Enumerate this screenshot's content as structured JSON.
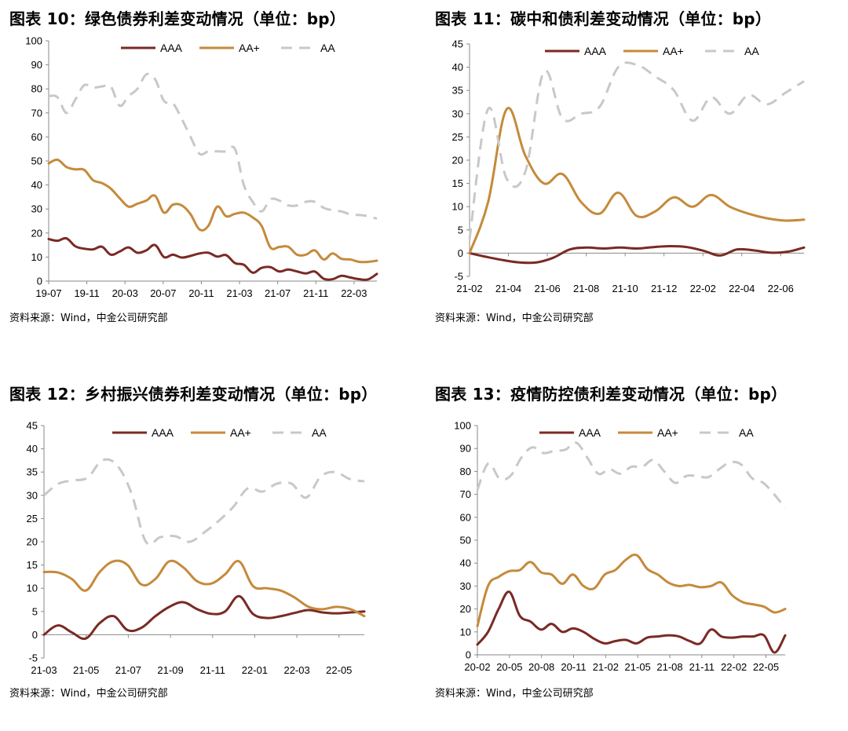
{
  "charts": [
    {
      "title": "图表 10：绿色债券利差变动情况（单位：bp）",
      "source": "资料来源：Wind，中金公司研究部",
      "chart_data": {
        "type": "line",
        "ylim": [
          0,
          100
        ],
        "yticks": [
          0,
          10,
          20,
          30,
          40,
          50,
          60,
          70,
          80,
          90,
          100
        ],
        "xtick_labels": [
          "19-07",
          "19-11",
          "20-03",
          "20-07",
          "20-11",
          "21-03",
          "21-07",
          "21-11",
          "22-03"
        ],
        "grid": false,
        "legend_placement": "top",
        "series": [
          {
            "name": "AAA",
            "color": "#7a2a25",
            "dash": "solid",
            "values": [
              17.5,
              16.8,
              17.8,
              14.5,
              13.5,
              13.2,
              14.3,
              11.0,
              12.3,
              14.0,
              11.8,
              12.8,
              15.0,
              10.0,
              11.0,
              9.8,
              10.5,
              11.5,
              11.8,
              10.2,
              10.8,
              7.5,
              6.8,
              3.5,
              5.5,
              5.8,
              4.0,
              4.8,
              4.0,
              3.2,
              4.0,
              1.0,
              0.8,
              2.2,
              1.5,
              0.8,
              0.7,
              3.0
            ]
          },
          {
            "name": "AA+",
            "color": "#c58a3b",
            "dash": "solid",
            "values": [
              49.0,
              50.5,
              47.5,
              46.5,
              46.3,
              42.0,
              40.8,
              38.5,
              34.5,
              31.0,
              32.2,
              33.5,
              35.5,
              28.5,
              31.8,
              31.5,
              27.8,
              21.5,
              23.0,
              31.0,
              27.0,
              28.0,
              28.5,
              26.5,
              23.0,
              14.0,
              14.2,
              14.3,
              11.0,
              11.0,
              12.8,
              9.0,
              11.5,
              9.3,
              9.0,
              8.0,
              8.0,
              8.5
            ]
          },
          {
            "name": "AA",
            "color": "#c8c8c8",
            "dash": "dashed",
            "values": [
              77.0,
              76.5,
              70.0,
              75.5,
              81.5,
              80.5,
              81.0,
              81.0,
              73.0,
              77.0,
              80.0,
              86.0,
              84.0,
              75.0,
              74.0,
              67.5,
              60.0,
              53.0,
              54.0,
              54.0,
              54.0,
              55.0,
              40.0,
              33.0,
              29.0,
              34.0,
              33.5,
              31.5,
              31.5,
              33.0,
              33.0,
              30.5,
              29.5,
              29.0,
              27.8,
              27.5,
              27.0,
              26.0
            ]
          }
        ]
      }
    },
    {
      "title": "图表 11：碳中和债利差变动情况（单位：bp）",
      "source": "资料来源：Wind，中金公司研究部",
      "chart_data": {
        "type": "line",
        "ylim": [
          -5,
          45
        ],
        "yticks": [
          -5,
          0,
          5,
          10,
          15,
          20,
          25,
          30,
          35,
          40,
          45
        ],
        "xtick_labels": [
          "21-02",
          "21-04",
          "21-06",
          "21-08",
          "21-10",
          "21-12",
          "22-02",
          "22-04",
          "22-06"
        ],
        "grid": false,
        "legend_placement": "top",
        "series": [
          {
            "name": "AAA",
            "color": "#7a2a25",
            "dash": "solid",
            "values": [
              0.0,
              -0.8,
              -1.5,
              -2.0,
              -2.0,
              -1.0,
              0.8,
              1.2,
              1.0,
              1.2,
              1.0,
              1.3,
              1.5,
              1.3,
              0.5,
              -0.5,
              0.8,
              0.6,
              0.1,
              0.3,
              1.2
            ]
          },
          {
            "name": "AA+",
            "color": "#c58a3b",
            "dash": "solid",
            "values": [
              0.0,
              11.0,
              31.0,
              21.0,
              15.0,
              17.0,
              11.0,
              8.5,
              13.0,
              8.0,
              9.0,
              12.0,
              10.0,
              12.5,
              10.0,
              8.5,
              7.5,
              7.0,
              7.2
            ]
          },
          {
            "name": "AA",
            "color": "#c8c8c8",
            "dash": "dashed",
            "values": [
              3.0,
              31.0,
              16.0,
              17.5,
              39.0,
              29.0,
              30.0,
              31.5,
              40.0,
              40.5,
              38.0,
              35.0,
              28.5,
              33.5,
              30.0,
              34.0,
              32.0,
              34.5,
              37.0
            ]
          }
        ]
      }
    },
    {
      "title": "图表 12：乡村振兴债券利差变动情况（单位：bp）",
      "source": "资料来源：Wind，中金公司研究部",
      "chart_data": {
        "type": "line",
        "ylim": [
          -5,
          45
        ],
        "yticks": [
          -5,
          0,
          5,
          10,
          15,
          20,
          25,
          30,
          35,
          40,
          45
        ],
        "xtick_labels": [
          "21-03",
          "21-05",
          "21-07",
          "21-09",
          "21-11",
          "22-01",
          "22-03",
          "22-05"
        ],
        "grid": false,
        "legend_placement": "top",
        "series": [
          {
            "name": "AAA",
            "color": "#7a2a25",
            "dash": "solid",
            "values": [
              0.0,
              2.0,
              0.5,
              -0.8,
              2.5,
              4.0,
              1.0,
              1.5,
              4.0,
              6.0,
              7.0,
              5.5,
              4.5,
              5.0,
              8.3,
              4.5,
              3.6,
              4.0,
              4.7,
              5.3,
              4.8,
              4.6,
              4.8,
              5.0
            ]
          },
          {
            "name": "AA+",
            "color": "#c58a3b",
            "dash": "solid",
            "values": [
              13.5,
              13.4,
              12.0,
              9.5,
              13.5,
              15.8,
              15.0,
              10.8,
              12.0,
              15.8,
              14.5,
              11.5,
              11.0,
              13.0,
              15.8,
              10.5,
              10.0,
              9.5,
              8.0,
              6.0,
              5.5,
              6.0,
              5.5,
              4.0
            ]
          },
          {
            "name": "AA",
            "color": "#c8c8c8",
            "dash": "dashed",
            "values": [
              30.0,
              32.5,
              33.2,
              33.8,
              37.5,
              36.5,
              30.5,
              20.0,
              21.0,
              21.2,
              20.0,
              22.0,
              24.5,
              27.5,
              31.5,
              30.8,
              32.5,
              32.5,
              29.5,
              34.0,
              35.0,
              33.5,
              33.0
            ]
          }
        ]
      }
    },
    {
      "title": "图表 13：疫情防控债利差变动情况（单位：bp）",
      "source": "资料来源：Wind，中金公司研究部",
      "chart_data": {
        "type": "line",
        "ylim": [
          0,
          100
        ],
        "yticks": [
          0,
          10,
          20,
          30,
          40,
          50,
          60,
          70,
          80,
          90,
          100
        ],
        "xtick_labels": [
          "20-02",
          "20-05",
          "20-08",
          "20-11",
          "21-02",
          "21-05",
          "21-08",
          "21-11",
          "22-02",
          "22-05"
        ],
        "grid": false,
        "legend_placement": "top",
        "series": [
          {
            "name": "AAA",
            "color": "#7a2a25",
            "dash": "solid",
            "values": [
              4.5,
              10.0,
              20.0,
              27.5,
              17.0,
              14.5,
              11.0,
              13.5,
              10.0,
              11.5,
              10.0,
              7.0,
              5.0,
              6.0,
              6.5,
              5.0,
              7.5,
              8.0,
              8.5,
              8.0,
              6.0,
              5.0,
              11.0,
              8.0,
              7.5,
              8.0,
              8.0,
              8.5,
              1.0,
              8.5
            ]
          },
          {
            "name": "AA+",
            "color": "#c58a3b",
            "dash": "solid",
            "values": [
              12.5,
              30.0,
              34.0,
              36.5,
              37.0,
              40.5,
              36.0,
              35.0,
              31.0,
              35.0,
              30.0,
              29.0,
              35.0,
              37.0,
              41.5,
              43.5,
              37.5,
              35.0,
              31.5,
              30.0,
              30.5,
              29.5,
              30.0,
              31.5,
              26.0,
              23.0,
              22.0,
              21.0,
              18.5,
              20.0
            ]
          },
          {
            "name": "AA",
            "color": "#c8c8c8",
            "dash": "dashed",
            "values": [
              72.0,
              83.5,
              77.0,
              78.0,
              86.0,
              90.5,
              88.0,
              89.0,
              89.5,
              92.5,
              86.0,
              79.0,
              81.0,
              79.0,
              82.0,
              82.0,
              85.0,
              80.0,
              75.0,
              78.0,
              78.0,
              77.5,
              81.0,
              84.0,
              83.0,
              77.0,
              75.0,
              70.0,
              64.0
            ]
          }
        ]
      }
    }
  ]
}
